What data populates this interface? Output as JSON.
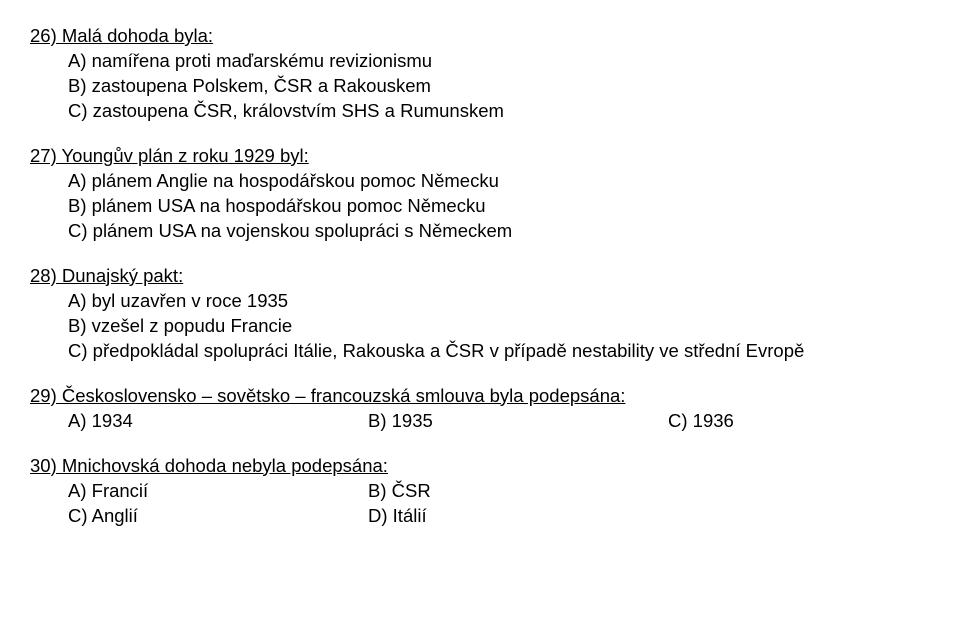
{
  "q26": {
    "title": "26) Malá dohoda byla:",
    "a": "A)  namířena proti maďarskému revizionismu",
    "b": "B)  zastoupena Polskem, ČSR a Rakouskem",
    "c": "C)  zastoupena ČSR, královstvím SHS a Rumunskem"
  },
  "q27": {
    "title": "27) Youngův plán z roku 1929 byl:",
    "a": "A)  plánem Anglie na hospodářskou pomoc Německu",
    "b": "B)  plánem USA na hospodářskou pomoc Německu",
    "c": "C)  plánem USA na vojenskou spolupráci s Německem"
  },
  "q28": {
    "title": "28) Dunajský pakt:",
    "a": "A)  byl uzavřen v roce 1935",
    "b": "B)  vzešel z popudu Francie",
    "c": "C)  předpokládal spolupráci Itálie, Rakouska a ČSR v případě nestability ve střední Evropě"
  },
  "q29": {
    "title": "29) Československo – sovětsko – francouzská smlouva byla podepsána:",
    "a": "A)  1934",
    "b": "B)  1935",
    "c": "C)  1936"
  },
  "q30": {
    "title": "30) Mnichovská dohoda nebyla podepsána:",
    "a": "A)  Francií",
    "b": "B)  ČSR",
    "c": "C)  Anglií",
    "d": "D)  Itálií"
  }
}
